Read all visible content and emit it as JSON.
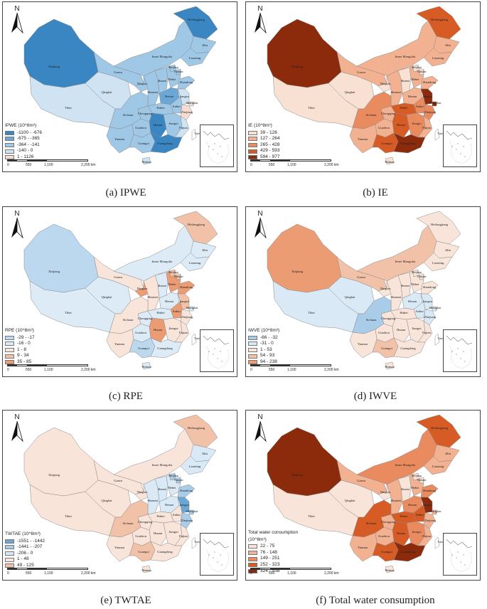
{
  "panels": [
    {
      "caption": "(a)  IPWE",
      "legend_title": "IPWE (10^8m³)",
      "legend": [
        {
          "label": "-1100 - -676",
          "color": "#3a86c2"
        },
        {
          "label": "-675 - -365",
          "color": "#6aa7d6"
        },
        {
          "label": "-364 - -141",
          "color": "#9fc8e6"
        },
        {
          "label": "-140 - 0",
          "color": "#cfe3f2"
        },
        {
          "label": "1 - 1126",
          "color": "#f6ddd4"
        }
      ],
      "colors": {
        "Xinjiang": 0,
        "Tibet": 3,
        "Qinghai": 3,
        "Gansu": 2,
        "Inner Mongolia": 2,
        "Heilongjiang": 0,
        "Jilin": 2,
        "Liaoning": 2,
        "Ningxia": 2,
        "Shaanxi": 2,
        "Shanxi": 2,
        "Hebei": 2,
        "Beijing": 2,
        "Tianjin": 2,
        "Shandong": 2,
        "Henan": 1,
        "Sichuan": 2,
        "Chongqing": 2,
        "Hubei": 2,
        "Anhui": 2,
        "Jiangsu": 3,
        "Shanghai": 4,
        "Zhejiang": 4,
        "Yunnan": 2,
        "Guizhou": 2,
        "Hunan": 0,
        "Jiangxi": 2,
        "Fujian": 3,
        "Guangxi": 2,
        "Guangdong": 0,
        "Hainan": 3,
        "Taiwan": -1
      }
    },
    {
      "caption": "(b) IE",
      "legend_title": "IE (10^8m³)",
      "legend": [
        {
          "label": "39 - 126",
          "color": "#f8e0d2"
        },
        {
          "label": "127 - 264",
          "color": "#f2b191"
        },
        {
          "label": "265 - 428",
          "color": "#e98b5e"
        },
        {
          "label": "429 - 593",
          "color": "#d65b24"
        },
        {
          "label": "594 - 977",
          "color": "#8b2b0c"
        }
      ],
      "colors": {
        "Xinjiang": 4,
        "Tibet": 0,
        "Qinghai": 0,
        "Gansu": 1,
        "Inner Mongolia": 1,
        "Heilongjiang": 3,
        "Jilin": 1,
        "Liaoning": 1,
        "Ningxia": 0,
        "Shaanxi": 1,
        "Shanxi": 0,
        "Hebei": 1,
        "Beijing": 0,
        "Tianjin": 0,
        "Shandong": 1,
        "Henan": 1,
        "Sichuan": 2,
        "Chongqing": 1,
        "Hubei": 3,
        "Anhui": 2,
        "Jiangsu": 4,
        "Shanghai": 4,
        "Zhejiang": 2,
        "Yunnan": 1,
        "Guizhou": 1,
        "Hunan": 3,
        "Jiangxi": 2,
        "Fujian": 1,
        "Guangxi": 3,
        "Guangdong": 4,
        "Hainan": 0,
        "Taiwan": -1
      }
    },
    {
      "caption": "(c) RPE",
      "legend_title": "RPE (10^8m³)",
      "legend": [
        {
          "label": "-29 - -17",
          "color": "#bcd8ee"
        },
        {
          "label": "-16 - 0",
          "color": "#ddebf6"
        },
        {
          "label": "1 - 8",
          "color": "#f9e4da"
        },
        {
          "label": "9 - 34",
          "color": "#f2c2a8"
        },
        {
          "label": "35 - 85",
          "color": "#ec9c72"
        }
      ],
      "colors": {
        "Xinjiang": 0,
        "Tibet": 1,
        "Qinghai": 1,
        "Gansu": 2,
        "Inner Mongolia": 1,
        "Heilongjiang": 3,
        "Jilin": 1,
        "Liaoning": 1,
        "Ningxia": 4,
        "Shaanxi": 2,
        "Shanxi": 1,
        "Hebei": 4,
        "Beijing": 3,
        "Tianjin": 3,
        "Shandong": 4,
        "Henan": 1,
        "Sichuan": 2,
        "Chongqing": 1,
        "Hubei": 1,
        "Anhui": 4,
        "Jiangsu": 3,
        "Shanghai": 1,
        "Zhejiang": 2,
        "Yunnan": 2,
        "Guizhou": 1,
        "Hunan": 4,
        "Jiangxi": 2,
        "Fujian": 2,
        "Guangxi": 0,
        "Guangdong": 1,
        "Hainan": 1,
        "Taiwan": -1
      }
    },
    {
      "caption": "(d) IWVE",
      "legend_title": "IWVE (10^8m³)",
      "legend": [
        {
          "label": "-66 - -32",
          "color": "#a9cde9"
        },
        {
          "label": "-31 - 0",
          "color": "#d9eaf6"
        },
        {
          "label": "1 - 53",
          "color": "#f9e4da"
        },
        {
          "label": "54 - 93",
          "color": "#f2c2a8"
        },
        {
          "label": "94 - 238",
          "color": "#ec9c72"
        }
      ],
      "colors": {
        "Xinjiang": 4,
        "Tibet": 1,
        "Qinghai": 1,
        "Gansu": 3,
        "Inner Mongolia": 3,
        "Heilongjiang": 2,
        "Jilin": 2,
        "Liaoning": 2,
        "Ningxia": 2,
        "Shaanxi": 2,
        "Shanxi": 2,
        "Hebei": 2,
        "Beijing": 2,
        "Tianjin": 2,
        "Shandong": 2,
        "Henan": 1,
        "Sichuan": 0,
        "Chongqing": 2,
        "Hubei": 2,
        "Anhui": 1,
        "Jiangsu": 1,
        "Shanghai": 1,
        "Zhejiang": 1,
        "Yunnan": 2,
        "Guizhou": 2,
        "Hunan": 2,
        "Jiangxi": 2,
        "Fujian": 2,
        "Guangxi": 3,
        "Guangdong": 2,
        "Hainan": 2,
        "Taiwan": -1
      }
    },
    {
      "caption": "(e) TWTAE",
      "legend_title": "TWTAE (10^8m³)",
      "legend": [
        {
          "label": "-1551 - -1442",
          "color": "#6aa7d6"
        },
        {
          "label": "-1441 - -207",
          "color": "#a9cde9"
        },
        {
          "label": "-206 - 0",
          "color": "#d9eaf6"
        },
        {
          "label": "1 - 48",
          "color": "#f9e4da"
        },
        {
          "label": "49 - 125",
          "color": "#f2c2a8"
        }
      ],
      "colors": {
        "Xinjiang": 3,
        "Tibet": 3,
        "Qinghai": 3,
        "Gansu": 3,
        "Inner Mongolia": 3,
        "Heilongjiang": 4,
        "Jilin": 2,
        "Liaoning": 2,
        "Ningxia": 3,
        "Shaanxi": 2,
        "Shanxi": 2,
        "Hebei": 2,
        "Beijing": 1,
        "Tianjin": 1,
        "Shandong": 1,
        "Henan": 2,
        "Sichuan": 4,
        "Chongqing": 3,
        "Hubei": 3,
        "Anhui": 3,
        "Jiangsu": 0,
        "Shanghai": 1,
        "Zhejiang": 1,
        "Yunnan": 3,
        "Guizhou": 3,
        "Hunan": 3,
        "Jiangxi": 3,
        "Fujian": 3,
        "Guangxi": 4,
        "Guangdong": 3,
        "Hainan": 3,
        "Taiwan": -1
      }
    },
    {
      "caption": "(f) Total water consumption",
      "legend_title": "Total water consumption",
      "legend_title2": "(10^8m³)",
      "legend": [
        {
          "label": "22 - 75",
          "color": "#f9e4da"
        },
        {
          "label": "76 - 148",
          "color": "#f2b191"
        },
        {
          "label": "149 - 251",
          "color": "#e98b5e"
        },
        {
          "label": "252 - 323",
          "color": "#d65b24"
        },
        {
          "label": "324 - 538",
          "color": "#8b2b0c"
        }
      ],
      "colors": {
        "Xinjiang": 4,
        "Tibet": 0,
        "Qinghai": 0,
        "Gansu": 1,
        "Inner Mongolia": 2,
        "Heilongjiang": 3,
        "Jilin": 1,
        "Liaoning": 1,
        "Ningxia": 0,
        "Shaanxi": 1,
        "Shanxi": 0,
        "Hebei": 1,
        "Beijing": 0,
        "Tianjin": 0,
        "Shandong": 2,
        "Henan": 2,
        "Sichuan": 3,
        "Chongqing": 1,
        "Hubei": 3,
        "Anhui": 3,
        "Jiangsu": 4,
        "Shanghai": 1,
        "Zhejiang": 1,
        "Yunnan": 1,
        "Guizhou": 1,
        "Hunan": 3,
        "Jiangxi": 2,
        "Fujian": 1,
        "Guangxi": 3,
        "Guangdong": 4,
        "Hainan": 0,
        "Taiwan": -1
      }
    }
  ],
  "scale_ticks": [
    "0",
    "550",
    "1,100",
    "2,200 km"
  ],
  "north_label": "N",
  "taiwan_color": "#ffffff"
}
